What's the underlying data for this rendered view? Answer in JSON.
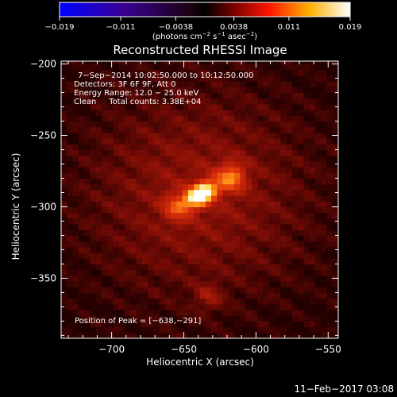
{
  "chart_data": {
    "type": "heatmap",
    "title": "Reconstructed RHESSI Image",
    "xlabel": "Heliocentric X (arcsec)",
    "ylabel": "Heliocentric Y (arcsec)",
    "xlim": [
      -735,
      -543
    ],
    "ylim": [
      -392,
      -198
    ],
    "x_ticks": [
      {
        "value": -700,
        "label": "−700"
      },
      {
        "value": -650,
        "label": "−650"
      },
      {
        "value": -600,
        "label": "−600"
      },
      {
        "value": -550,
        "label": "−550"
      }
    ],
    "y_ticks": [
      {
        "value": -200,
        "label": "−200"
      },
      {
        "value": -250,
        "label": "−250"
      },
      {
        "value": -300,
        "label": "−300"
      },
      {
        "value": -350,
        "label": "−350"
      }
    ],
    "colorbar": {
      "range": [
        -0.019,
        0.019
      ],
      "ticks": [
        {
          "value": -0.019,
          "label": "−0.019"
        },
        {
          "value": -0.011,
          "label": "−0.011"
        },
        {
          "value": -0.0038,
          "label": "−0.0038"
        },
        {
          "value": 0.0038,
          "label": "0.0038"
        },
        {
          "value": 0.011,
          "label": "0.011"
        },
        {
          "value": 0.019,
          "label": "0.019"
        }
      ],
      "unit_parts": [
        "(photons cm",
        "−2",
        " s",
        "−1",
        " asec",
        "−2",
        ")"
      ]
    },
    "annotations": [
      "7−Sep−2014 10:02:50.000 to 10:12:50.000",
      "Detectors: 3F 6F 9F, Att 0",
      "Energy Range: 12.0 − 25.0 keV",
      "Clean     Total counts: 3.38E+04"
    ],
    "peak_label": "Position of Peak = [−638,−291]",
    "sources": [
      {
        "x": -638,
        "y": -291,
        "amplitude": 0.019
      },
      {
        "x": -617,
        "y": -279,
        "amplitude": 0.009
      },
      {
        "x": -655,
        "y": -300,
        "amplitude": 0.006
      },
      {
        "x": -633,
        "y": -363,
        "amplitude": 0.0035
      }
    ]
  },
  "footer_date": "11−Feb−2017 03:08"
}
